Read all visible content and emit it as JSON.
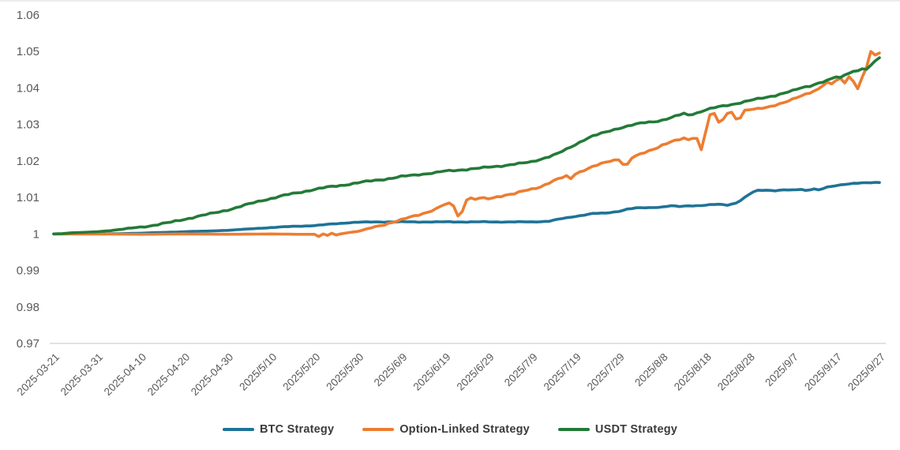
{
  "chart_data": {
    "type": "line",
    "title": "",
    "grid": "baseline-only",
    "legend_position": "bottom",
    "axis_color": "#d9d9d9",
    "label_color": "#595959",
    "y_axis": {
      "min": 0.97,
      "max": 1.06,
      "ticks": [
        "1.06",
        "1.05",
        "1.04",
        "1.03",
        "1.02",
        "1.01",
        "1",
        "0.99",
        "0.98",
        "0.97"
      ]
    },
    "x_axis": {
      "span_days": 190,
      "tick_days": [
        0,
        10,
        20,
        30,
        40,
        50,
        60,
        70,
        80,
        90,
        100,
        110,
        120,
        130,
        140,
        150,
        160,
        170,
        180,
        190
      ],
      "tick_labels": [
        "2025-03-21",
        "2025-03-31",
        "2025-04-10",
        "2025-04-20",
        "2025-04-30",
        "2025/5/10",
        "2025/5/20",
        "2025/5/30",
        "2025/6/9",
        "2025/6/19",
        "2025/6/29",
        "2025/7/9",
        "2025/7/19",
        "2025/7/29",
        "2025/8/8",
        "2025/8/18",
        "2025/8/28",
        "2025/9/7",
        "2025/9/17",
        "2025/9/27"
      ]
    },
    "series": [
      {
        "name": "BTC Strategy",
        "color": "#1f7396",
        "points": [
          [
            0,
            1.0
          ],
          [
            4,
            1.0
          ],
          [
            8,
            1.0
          ],
          [
            12,
            1.0
          ],
          [
            16,
            1.0001
          ],
          [
            20,
            1.0002
          ],
          [
            24,
            1.0004
          ],
          [
            28,
            1.0005
          ],
          [
            32,
            1.0007
          ],
          [
            36,
            1.0008
          ],
          [
            40,
            1.001
          ],
          [
            44,
            1.0013
          ],
          [
            48,
            1.0016
          ],
          [
            52,
            1.0019
          ],
          [
            56,
            1.0021
          ],
          [
            60,
            1.0023
          ],
          [
            64,
            1.0027
          ],
          [
            68,
            1.0031
          ],
          [
            70,
            1.0032
          ],
          [
            74,
            1.0033
          ],
          [
            80,
            1.0033
          ],
          [
            86,
            1.0033
          ],
          [
            92,
            1.0033
          ],
          [
            98,
            1.0033
          ],
          [
            104,
            1.0033
          ],
          [
            110,
            1.0033
          ],
          [
            114,
            1.0035
          ],
          [
            116,
            1.004
          ],
          [
            118,
            1.0044
          ],
          [
            120,
            1.0048
          ],
          [
            122,
            1.0052
          ],
          [
            124,
            1.0056
          ],
          [
            127,
            1.0057
          ],
          [
            130,
            1.0062
          ],
          [
            132,
            1.0068
          ],
          [
            134,
            1.0071
          ],
          [
            137,
            1.0072
          ],
          [
            140,
            1.0074
          ],
          [
            142,
            1.0077
          ],
          [
            144,
            1.0075
          ],
          [
            146,
            1.0077
          ],
          [
            149,
            1.0078
          ],
          [
            151,
            1.008
          ],
          [
            153,
            1.0081
          ],
          [
            155,
            1.0079
          ],
          [
            157,
            1.0085
          ],
          [
            158,
            1.0092
          ],
          [
            159,
            1.01
          ],
          [
            160,
            1.0108
          ],
          [
            161,
            1.0115
          ],
          [
            162,
            1.0119
          ],
          [
            164,
            1.012
          ],
          [
            166,
            1.0119
          ],
          [
            168,
            1.0121
          ],
          [
            170,
            1.012
          ],
          [
            172,
            1.0122
          ],
          [
            173,
            1.0119
          ],
          [
            175,
            1.0124
          ],
          [
            176,
            1.0121
          ],
          [
            178,
            1.0128
          ],
          [
            180,
            1.0132
          ],
          [
            182,
            1.0136
          ],
          [
            184,
            1.0139
          ],
          [
            186,
            1.014
          ],
          [
            188,
            1.014
          ],
          [
            190,
            1.0141
          ]
        ]
      },
      {
        "name": "Option-Linked Strategy",
        "color": "#ed7d31",
        "points": [
          [
            0,
            1.0
          ],
          [
            10,
            1.0
          ],
          [
            20,
            0.9999
          ],
          [
            30,
            1.0
          ],
          [
            40,
            0.9999
          ],
          [
            50,
            1.0
          ],
          [
            56,
            0.9999
          ],
          [
            60,
            0.9999
          ],
          [
            61,
            0.9993
          ],
          [
            62,
            1.0
          ],
          [
            63,
            0.9996
          ],
          [
            64,
            1.0002
          ],
          [
            65,
            0.9997
          ],
          [
            66,
            1.0
          ],
          [
            68,
            1.0004
          ],
          [
            70,
            1.0007
          ],
          [
            72,
            1.0013
          ],
          [
            74,
            1.002
          ],
          [
            76,
            1.0026
          ],
          [
            78,
            1.0032
          ],
          [
            80,
            1.0038
          ],
          [
            82,
            1.0046
          ],
          [
            84,
            1.0053
          ],
          [
            86,
            1.006
          ],
          [
            88,
            1.0068
          ],
          [
            89,
            1.0075
          ],
          [
            90,
            1.008
          ],
          [
            91,
            1.0083
          ],
          [
            92,
            1.0078
          ],
          [
            93,
            1.005
          ],
          [
            94,
            1.0062
          ],
          [
            95,
            1.0095
          ],
          [
            96,
            1.0098
          ],
          [
            97,
            1.0094
          ],
          [
            98,
            1.0098
          ],
          [
            100,
            1.0096
          ],
          [
            102,
            1.0102
          ],
          [
            104,
            1.0107
          ],
          [
            106,
            1.011
          ],
          [
            108,
            1.0117
          ],
          [
            110,
            1.0123
          ],
          [
            112,
            1.013
          ],
          [
            114,
            1.014
          ],
          [
            116,
            1.015
          ],
          [
            118,
            1.0158
          ],
          [
            119,
            1.0152
          ],
          [
            120,
            1.0165
          ],
          [
            122,
            1.0175
          ],
          [
            124,
            1.0184
          ],
          [
            126,
            1.0192
          ],
          [
            128,
            1.02
          ],
          [
            130,
            1.0205
          ],
          [
            131,
            1.0192
          ],
          [
            132,
            1.019
          ],
          [
            133,
            1.0208
          ],
          [
            135,
            1.0218
          ],
          [
            137,
            1.0228
          ],
          [
            139,
            1.0238
          ],
          [
            140,
            1.0244
          ],
          [
            142,
            1.0252
          ],
          [
            144,
            1.0258
          ],
          [
            145,
            1.0262
          ],
          [
            146,
            1.0258
          ],
          [
            147,
            1.0264
          ],
          [
            148,
            1.0262
          ],
          [
            149,
            1.0232
          ],
          [
            150,
            1.028
          ],
          [
            151,
            1.0325
          ],
          [
            152,
            1.033
          ],
          [
            153,
            1.0305
          ],
          [
            154,
            1.0312
          ],
          [
            155,
            1.0332
          ],
          [
            156,
            1.0334
          ],
          [
            157,
            1.0316
          ],
          [
            158,
            1.032
          ],
          [
            159,
            1.0338
          ],
          [
            160,
            1.034
          ],
          [
            162,
            1.0342
          ],
          [
            164,
            1.0347
          ],
          [
            166,
            1.0354
          ],
          [
            168,
            1.036
          ],
          [
            170,
            1.0368
          ],
          [
            172,
            1.0378
          ],
          [
            174,
            1.0388
          ],
          [
            176,
            1.0398
          ],
          [
            177,
            1.0408
          ],
          [
            178,
            1.0414
          ],
          [
            179,
            1.041
          ],
          [
            180,
            1.042
          ],
          [
            181,
            1.0425
          ],
          [
            182,
            1.0415
          ],
          [
            183,
            1.0432
          ],
          [
            184,
            1.0418
          ],
          [
            185,
            1.04
          ],
          [
            186,
            1.0428
          ],
          [
            187,
            1.0455
          ],
          [
            188,
            1.05
          ],
          [
            189,
            1.0488
          ],
          [
            190,
            1.0496
          ]
        ]
      },
      {
        "name": "USDT Strategy",
        "color": "#237a38",
        "points": [
          [
            0,
            1.0
          ],
          [
            2,
            1.0001
          ],
          [
            4,
            1.0003
          ],
          [
            6,
            1.0004
          ],
          [
            8,
            1.0005
          ],
          [
            10,
            1.0006
          ],
          [
            12,
            1.0008
          ],
          [
            15,
            1.0012
          ],
          [
            18,
            1.0016
          ],
          [
            21,
            1.002
          ],
          [
            24,
            1.0026
          ],
          [
            27,
            1.0032
          ],
          [
            30,
            1.004
          ],
          [
            33,
            1.0048
          ],
          [
            36,
            1.0055
          ],
          [
            39,
            1.0063
          ],
          [
            42,
            1.0072
          ],
          [
            45,
            1.0082
          ],
          [
            48,
            1.0092
          ],
          [
            51,
            1.01
          ],
          [
            54,
            1.0108
          ],
          [
            57,
            1.0115
          ],
          [
            60,
            1.0122
          ],
          [
            63,
            1.0128
          ],
          [
            66,
            1.0133
          ],
          [
            70,
            1.014
          ],
          [
            74,
            1.0147
          ],
          [
            78,
            1.0153
          ],
          [
            80,
            1.0157
          ],
          [
            84,
            1.0163
          ],
          [
            88,
            1.0168
          ],
          [
            90,
            1.0172
          ],
          [
            94,
            1.0176
          ],
          [
            98,
            1.018
          ],
          [
            100,
            1.0183
          ],
          [
            104,
            1.0188
          ],
          [
            108,
            1.0194
          ],
          [
            110,
            1.0198
          ],
          [
            112,
            1.0205
          ],
          [
            114,
            1.0212
          ],
          [
            116,
            1.022
          ],
          [
            118,
            1.0232
          ],
          [
            120,
            1.0245
          ],
          [
            122,
            1.0258
          ],
          [
            124,
            1.0268
          ],
          [
            126,
            1.0275
          ],
          [
            128,
            1.0283
          ],
          [
            130,
            1.029
          ],
          [
            133,
            1.0298
          ],
          [
            136,
            1.0305
          ],
          [
            138,
            1.0308
          ],
          [
            140,
            1.0312
          ],
          [
            142,
            1.0318
          ],
          [
            144,
            1.0326
          ],
          [
            145,
            1.033
          ],
          [
            146,
            1.0326
          ],
          [
            148,
            1.0332
          ],
          [
            150,
            1.034
          ],
          [
            153,
            1.0348
          ],
          [
            156,
            1.0355
          ],
          [
            158,
            1.036
          ],
          [
            160,
            1.0365
          ],
          [
            163,
            1.0372
          ],
          [
            166,
            1.038
          ],
          [
            168,
            1.0386
          ],
          [
            170,
            1.0392
          ],
          [
            172,
            1.04
          ],
          [
            174,
            1.0406
          ],
          [
            176,
            1.0414
          ],
          [
            178,
            1.042
          ],
          [
            180,
            1.043
          ],
          [
            181,
            1.0427
          ],
          [
            182,
            1.0437
          ],
          [
            184,
            1.0446
          ],
          [
            186,
            1.0452
          ],
          [
            187,
            1.045
          ],
          [
            188,
            1.0462
          ],
          [
            189,
            1.0472
          ],
          [
            190,
            1.0483
          ]
        ]
      }
    ]
  }
}
